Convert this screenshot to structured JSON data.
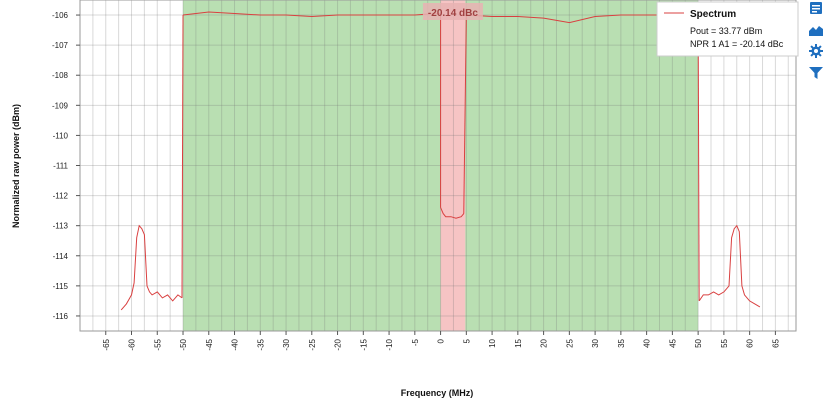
{
  "chart_data": {
    "type": "line",
    "title": "",
    "xlabel": "Frequency (MHz)",
    "ylabel": "Normalized raw power (dBm)",
    "xlim": [
      -70,
      69
    ],
    "ylim": [
      -116.5,
      -105.5
    ],
    "x_ticks": [
      -65,
      -60,
      -55,
      -50,
      -45,
      -40,
      -35,
      -30,
      -25,
      -20,
      -15,
      -10,
      -5,
      0,
      5,
      10,
      15,
      20,
      25,
      30,
      35,
      40,
      45,
      50,
      55,
      60,
      65
    ],
    "x_minor_step": 2.5,
    "y_ticks": [
      -106,
      -107,
      -108,
      -109,
      -110,
      -111,
      -112,
      -113,
      -114,
      -115,
      -116
    ],
    "grid": true,
    "legend_position": "top-right",
    "series": [
      {
        "name": "Spectrum",
        "color": "#d94040",
        "segments": [
          {
            "x": [
              -62,
              -61,
              -60,
              -59.5,
              -59,
              -58.5,
              -58,
              -57.5,
              -57,
              -56.5,
              -56,
              -55,
              -54,
              -53,
              -52,
              -51,
              -50.2
            ],
            "y": [
              -115.8,
              -115.6,
              -115.3,
              -114.9,
              -113.4,
              -113.0,
              -113.1,
              -113.3,
              -115.0,
              -115.2,
              -115.3,
              -115.2,
              -115.4,
              -115.3,
              -115.5,
              -115.3,
              -115.4
            ]
          },
          {
            "x": [
              -50,
              -45,
              -40,
              -35,
              -30,
              -25,
              -20,
              -15,
              -10,
              -5,
              -1,
              0
            ],
            "y": [
              -106.0,
              -105.9,
              -105.95,
              -106.0,
              -106.0,
              -106.05,
              -106.0,
              -106.0,
              -106.0,
              -106.0,
              -105.95,
              -105.95
            ]
          },
          {
            "x": [
              0,
              0.5,
              1,
              2,
              3,
              4,
              4.5
            ],
            "y": [
              -112.4,
              -112.6,
              -112.7,
              -112.7,
              -112.75,
              -112.7,
              -112.6
            ]
          },
          {
            "x": [
              5,
              10,
              15,
              20,
              25,
              30,
              35,
              40,
              45,
              50
            ],
            "y": [
              -106.0,
              -106.05,
              -106.05,
              -106.1,
              -106.25,
              -106.05,
              -106.0,
              -106.0,
              -106.0,
              -106.0
            ]
          },
          {
            "x": [
              50.2,
              51,
              52,
              53,
              54,
              55,
              56,
              56.5,
              57,
              57.5,
              58,
              58.5,
              59,
              60,
              61,
              62
            ],
            "y": [
              -115.5,
              -115.3,
              -115.3,
              -115.2,
              -115.3,
              -115.2,
              -115.0,
              -113.4,
              -113.1,
              -113.0,
              -113.2,
              -115.0,
              -115.3,
              -115.5,
              -115.6,
              -115.7
            ]
          }
        ]
      }
    ],
    "regions": [
      {
        "name": "carrier-band",
        "x_start": -50,
        "x_end": 50,
        "color": "#b9dfb2"
      },
      {
        "name": "notch-band",
        "x_start": 0,
        "x_end": 4.8,
        "color": "#f6c4c4"
      }
    ],
    "annotations": [
      {
        "text": "-20.14 dBc",
        "x": 2.4
      }
    ],
    "legend": {
      "title": "Spectrum",
      "lines": [
        "Pout = 33.77 dBm",
        "NPR 1 A1 = -20.14 dBc"
      ]
    }
  },
  "toolbar": {
    "icons": [
      "export-icon",
      "area-chart-icon",
      "gear-icon",
      "filter-icon"
    ],
    "accent": "#1f6fbf"
  }
}
